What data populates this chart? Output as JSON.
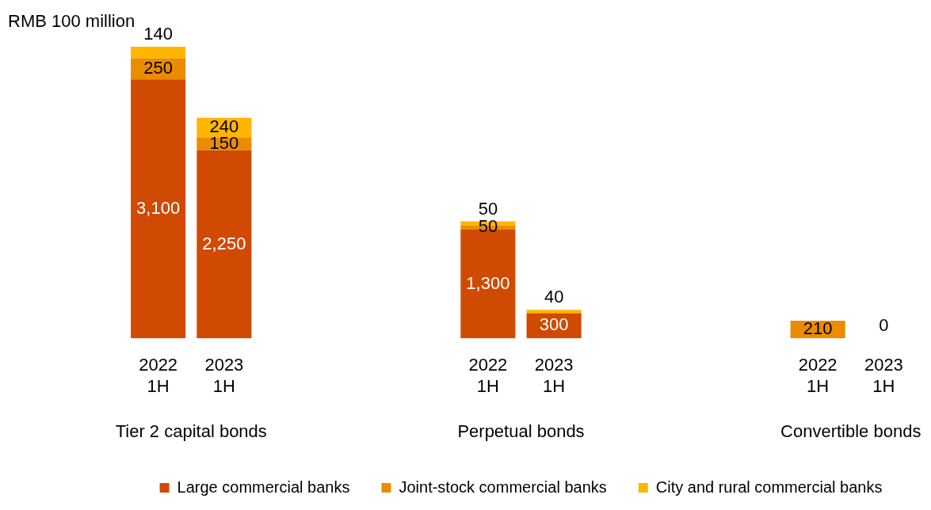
{
  "chart_data": {
    "type": "bar",
    "stacked": true,
    "ylabel": "RMB 100 million",
    "categories": [
      "2022 1H",
      "2023 1H",
      null,
      null,
      null,
      "2022 1H",
      "2023 1H",
      null,
      null,
      null,
      "2022 1H",
      "2023 1H"
    ],
    "series": [
      {
        "name": "Large commercial banks",
        "color": "#d04a02",
        "values": [
          3100,
          2250,
          null,
          null,
          null,
          1300,
          300,
          null,
          null,
          null,
          null,
          null
        ],
        "value_labels": [
          "3,100",
          "2,250",
          null,
          null,
          null,
          "1,300",
          "300",
          null,
          null,
          null,
          null,
          null
        ]
      },
      {
        "name": "Joint-stock commercial banks",
        "color": "#eb8c00",
        "values": [
          250,
          150,
          null,
          null,
          null,
          50,
          null,
          null,
          null,
          null,
          210,
          0
        ],
        "value_labels": [
          "250",
          "150",
          null,
          null,
          null,
          "50",
          null,
          null,
          null,
          null,
          "210",
          "0"
        ]
      },
      {
        "name": "City and rural commercial banks",
        "color": "#ffb600",
        "values": [
          140,
          240,
          null,
          null,
          null,
          50,
          40,
          null,
          null,
          null,
          null,
          null
        ],
        "value_labels": [
          "140",
          "240",
          null,
          null,
          null,
          "50",
          "40",
          null,
          null,
          null,
          null,
          null
        ]
      }
    ],
    "annotations": [
      "Tier 2 capital bonds",
      "Perpetual bonds",
      "Convertible bonds"
    ],
    "legend": "bottom",
    "grid": false
  }
}
